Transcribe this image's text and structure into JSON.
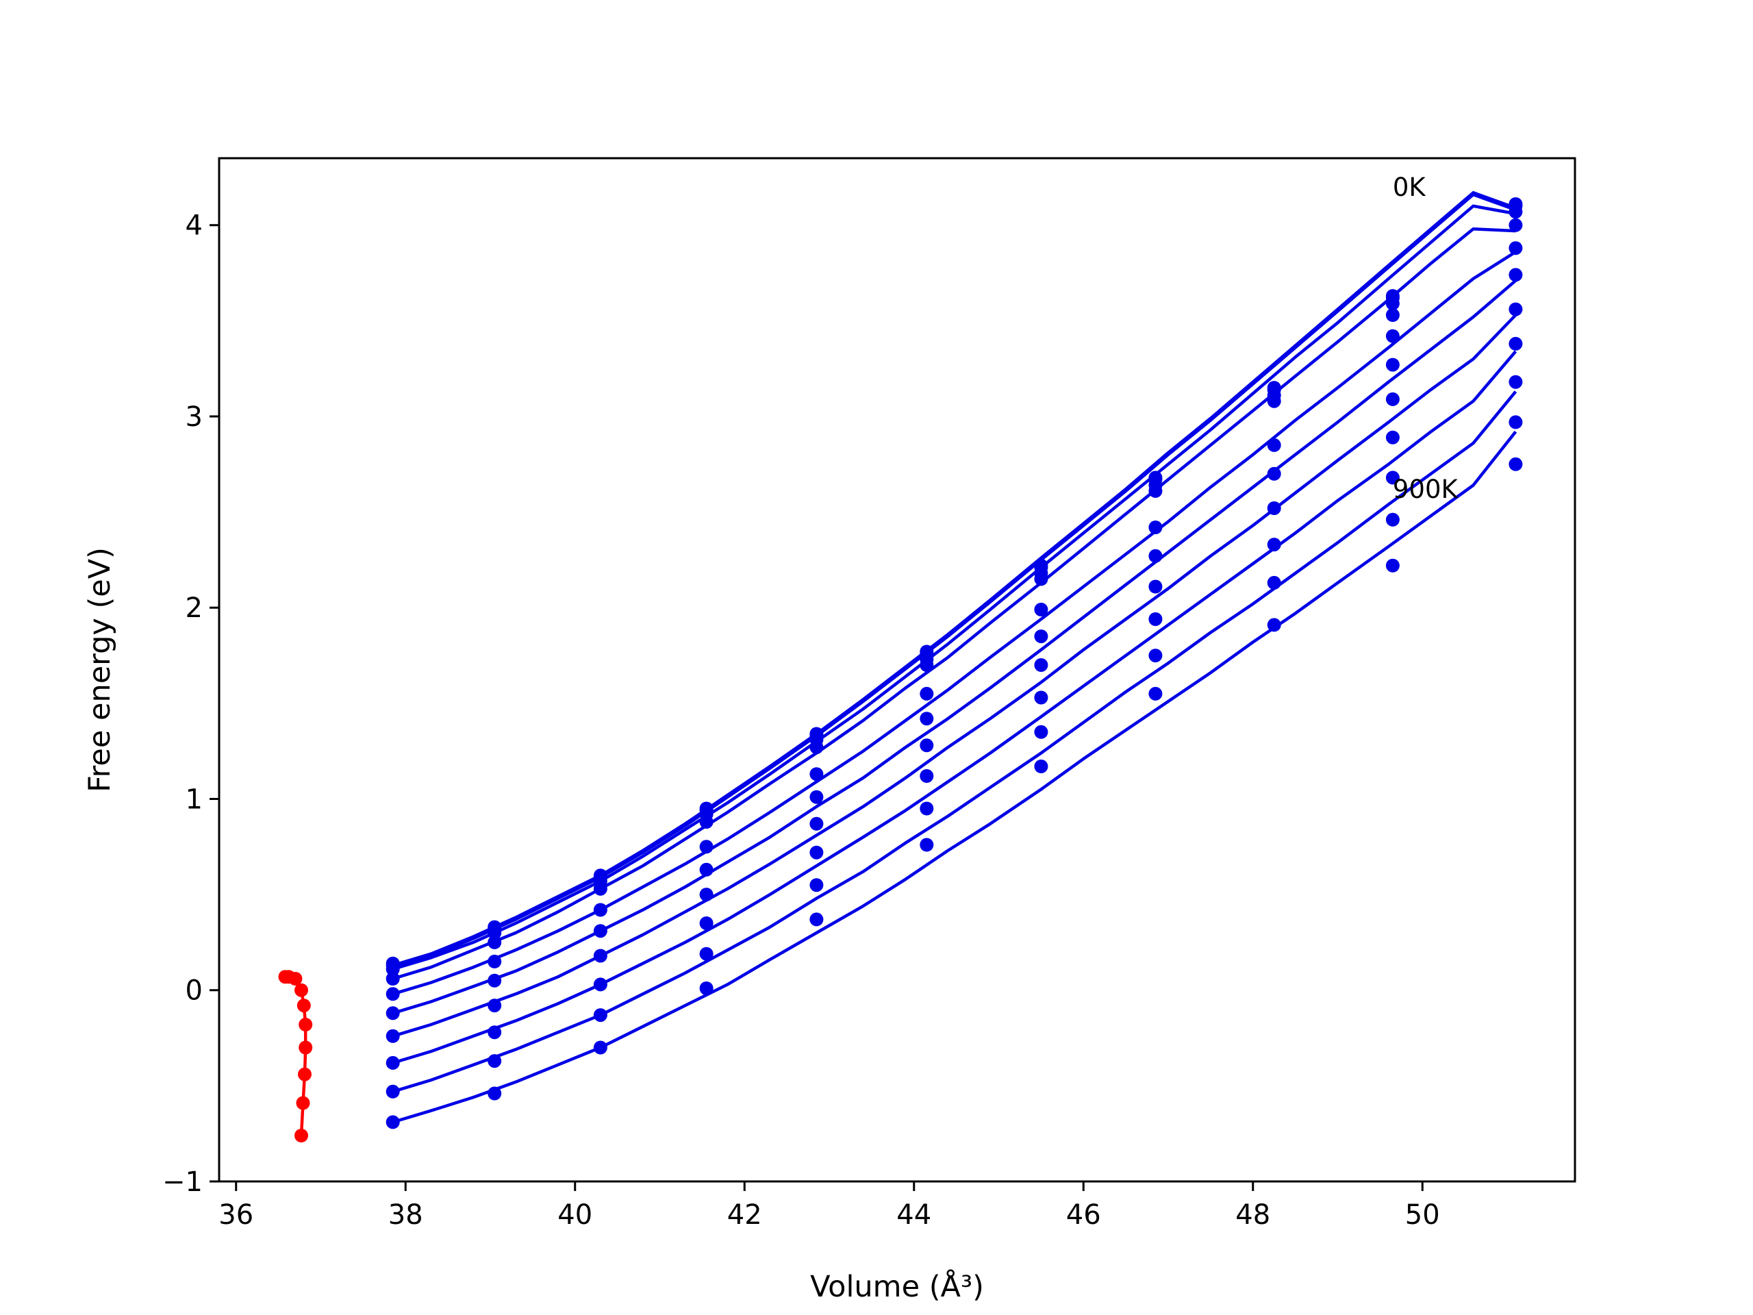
{
  "chart_data": {
    "type": "line",
    "xlabel": "Volume (Å³)",
    "ylabel": "Free energy (eV)",
    "xlim": [
      35.8,
      51.8
    ],
    "ylim": [
      -1.0,
      4.35
    ],
    "xticks": [
      36,
      38,
      40,
      42,
      44,
      46,
      48,
      50
    ],
    "yticks": [
      -1,
      0,
      1,
      2,
      3,
      4
    ],
    "xtick_labels": [
      "36",
      "38",
      "40",
      "42",
      "44",
      "46",
      "48",
      "50"
    ],
    "ytick_labels": [
      "−1",
      "0",
      "1",
      "2",
      "3",
      "4"
    ],
    "annotations": [
      {
        "text": "0K",
        "x": 49.65,
        "y": 4.2
      },
      {
        "text": "900K",
        "x": 49.65,
        "y": 2.62
      }
    ],
    "x": [
      37.85,
      39.05,
      40.3,
      41.55,
      42.85,
      44.15,
      45.5,
      46.85,
      48.25,
      49.65,
      51.1
    ],
    "fit_x": [
      37.85,
      38.3,
      38.8,
      39.3,
      39.8,
      40.3,
      40.8,
      41.3,
      41.8,
      42.3,
      42.85,
      43.4,
      43.9,
      44.4,
      44.9,
      45.5,
      46.0,
      46.5,
      47.0,
      47.5,
      48.0,
      48.5,
      49.0,
      49.6,
      50.1,
      50.6,
      51.1
    ],
    "series": [
      {
        "color": "#0000e6",
        "points": [
          0.14,
          0.33,
          0.6,
          0.95,
          1.34,
          1.77,
          2.22,
          2.68,
          3.15,
          3.63,
          4.11
        ],
        "fit": [
          0.13,
          0.19,
          0.28,
          0.38,
          0.49,
          0.6,
          0.73,
          0.87,
          1.02,
          1.17,
          1.34,
          1.52,
          1.69,
          1.86,
          2.04,
          2.26,
          2.44,
          2.62,
          2.81,
          2.99,
          3.18,
          3.37,
          3.56,
          3.79,
          3.98,
          4.17,
          4.09
        ]
      },
      {
        "color": "#0000e6",
        "points": [
          0.13,
          0.32,
          0.59,
          0.94,
          1.33,
          1.76,
          2.21,
          2.67,
          3.14,
          3.62,
          4.1
        ],
        "fit": [
          0.12,
          0.18,
          0.27,
          0.37,
          0.48,
          0.59,
          0.72,
          0.86,
          1.01,
          1.16,
          1.33,
          1.51,
          1.68,
          1.85,
          2.03,
          2.25,
          2.43,
          2.61,
          2.8,
          2.98,
          3.17,
          3.36,
          3.55,
          3.78,
          3.97,
          4.16,
          4.08
        ]
      },
      {
        "color": "#0000e6",
        "points": [
          0.11,
          0.3,
          0.57,
          0.92,
          1.31,
          1.73,
          2.18,
          2.64,
          3.11,
          3.59,
          4.07
        ],
        "fit": [
          0.11,
          0.17,
          0.25,
          0.35,
          0.46,
          0.57,
          0.7,
          0.84,
          0.98,
          1.13,
          1.3,
          1.47,
          1.64,
          1.81,
          1.99,
          2.21,
          2.39,
          2.57,
          2.75,
          2.93,
          3.12,
          3.31,
          3.49,
          3.72,
          3.91,
          4.1,
          4.06
        ]
      },
      {
        "color": "#0000e6",
        "points": [
          0.06,
          0.25,
          0.53,
          0.88,
          1.27,
          1.7,
          2.15,
          2.61,
          3.08,
          3.53,
          4.0
        ],
        "fit": [
          0.06,
          0.12,
          0.21,
          0.3,
          0.41,
          0.53,
          0.65,
          0.79,
          0.93,
          1.08,
          1.24,
          1.41,
          1.58,
          1.74,
          1.92,
          2.13,
          2.31,
          2.49,
          2.67,
          2.85,
          3.03,
          3.21,
          3.39,
          3.61,
          3.8,
          3.98,
          3.97
        ]
      },
      {
        "color": "#0000e6",
        "points": [
          -0.02,
          0.15,
          0.42,
          0.75,
          1.13,
          1.55,
          1.99,
          2.42,
          2.85,
          3.42,
          3.88
        ],
        "fit": [
          -0.02,
          0.04,
          0.12,
          0.21,
          0.31,
          0.42,
          0.54,
          0.66,
          0.79,
          0.93,
          1.09,
          1.25,
          1.41,
          1.57,
          1.74,
          1.94,
          2.11,
          2.28,
          2.45,
          2.63,
          2.8,
          2.98,
          3.15,
          3.36,
          3.54,
          3.72,
          3.86
        ]
      },
      {
        "color": "#0000e6",
        "points": [
          -0.12,
          0.05,
          0.31,
          0.63,
          1.01,
          1.42,
          1.85,
          2.27,
          2.7,
          3.27,
          3.74
        ],
        "fit": [
          -0.12,
          -0.06,
          0.02,
          0.1,
          0.2,
          0.31,
          0.42,
          0.54,
          0.67,
          0.8,
          0.96,
          1.11,
          1.27,
          1.42,
          1.58,
          1.78,
          1.95,
          2.12,
          2.29,
          2.46,
          2.63,
          2.8,
          2.97,
          3.18,
          3.35,
          3.52,
          3.71
        ]
      },
      {
        "color": "#0000e6",
        "points": [
          -0.24,
          -0.08,
          0.18,
          0.5,
          0.87,
          1.28,
          1.7,
          2.11,
          2.52,
          3.09,
          3.56
        ],
        "fit": [
          -0.24,
          -0.18,
          -0.1,
          -0.02,
          0.07,
          0.18,
          0.29,
          0.41,
          0.53,
          0.66,
          0.81,
          0.96,
          1.11,
          1.27,
          1.42,
          1.61,
          1.78,
          1.94,
          2.1,
          2.27,
          2.43,
          2.6,
          2.77,
          2.97,
          3.14,
          3.3,
          3.53
        ]
      },
      {
        "color": "#0000e6",
        "points": [
          -0.38,
          -0.22,
          0.03,
          0.35,
          0.72,
          1.12,
          1.53,
          1.94,
          2.33,
          2.89,
          3.38
        ],
        "fit": [
          -0.38,
          -0.32,
          -0.24,
          -0.16,
          -0.07,
          0.03,
          0.14,
          0.25,
          0.37,
          0.5,
          0.65,
          0.8,
          0.94,
          1.09,
          1.24,
          1.43,
          1.59,
          1.75,
          1.91,
          2.07,
          2.23,
          2.39,
          2.56,
          2.75,
          2.92,
          3.08,
          3.34
        ]
      },
      {
        "color": "#0000e6",
        "points": [
          -0.53,
          -0.37,
          -0.13,
          0.19,
          0.55,
          0.95,
          1.35,
          1.75,
          2.13,
          2.68,
          3.18
        ],
        "fit": [
          -0.53,
          -0.47,
          -0.39,
          -0.31,
          -0.22,
          -0.13,
          -0.02,
          0.09,
          0.21,
          0.33,
          0.48,
          0.62,
          0.77,
          0.91,
          1.06,
          1.24,
          1.4,
          1.56,
          1.71,
          1.87,
          2.02,
          2.18,
          2.34,
          2.54,
          2.7,
          2.86,
          3.13
        ]
      },
      {
        "color": "#0000e6",
        "points": [
          -0.69,
          -0.54,
          -0.3,
          0.01,
          0.37,
          0.76,
          1.17,
          1.55,
          1.91,
          2.46,
          2.97
        ],
        "fit": [
          -0.69,
          -0.63,
          -0.56,
          -0.48,
          -0.39,
          -0.3,
          -0.19,
          -0.08,
          0.03,
          0.16,
          0.3,
          0.44,
          0.58,
          0.73,
          0.87,
          1.05,
          1.21,
          1.36,
          1.51,
          1.66,
          1.82,
          1.97,
          2.13,
          2.32,
          2.48,
          2.64,
          2.92
        ]
      },
      {
        "color": "#0000e6",
        "points": [
          null,
          null,
          null,
          null,
          null,
          null,
          null,
          null,
          null,
          2.22,
          2.75
        ],
        "fit": [
          null,
          null,
          null,
          null,
          null,
          null,
          null,
          null,
          null,
          null,
          null,
          null,
          null,
          null,
          null,
          null,
          null,
          null,
          null,
          null,
          null,
          null,
          null,
          null,
          null,
          null,
          2.69
        ]
      }
    ],
    "minimum_path": {
      "color": "#ff0000",
      "x": [
        36.58,
        36.62,
        36.7,
        36.77,
        36.8,
        36.82,
        36.82,
        36.81,
        36.79,
        36.77
      ],
      "y": [
        0.07,
        0.07,
        0.06,
        0.0,
        -0.08,
        -0.18,
        -0.3,
        -0.44,
        -0.59,
        -0.76
      ]
    }
  }
}
